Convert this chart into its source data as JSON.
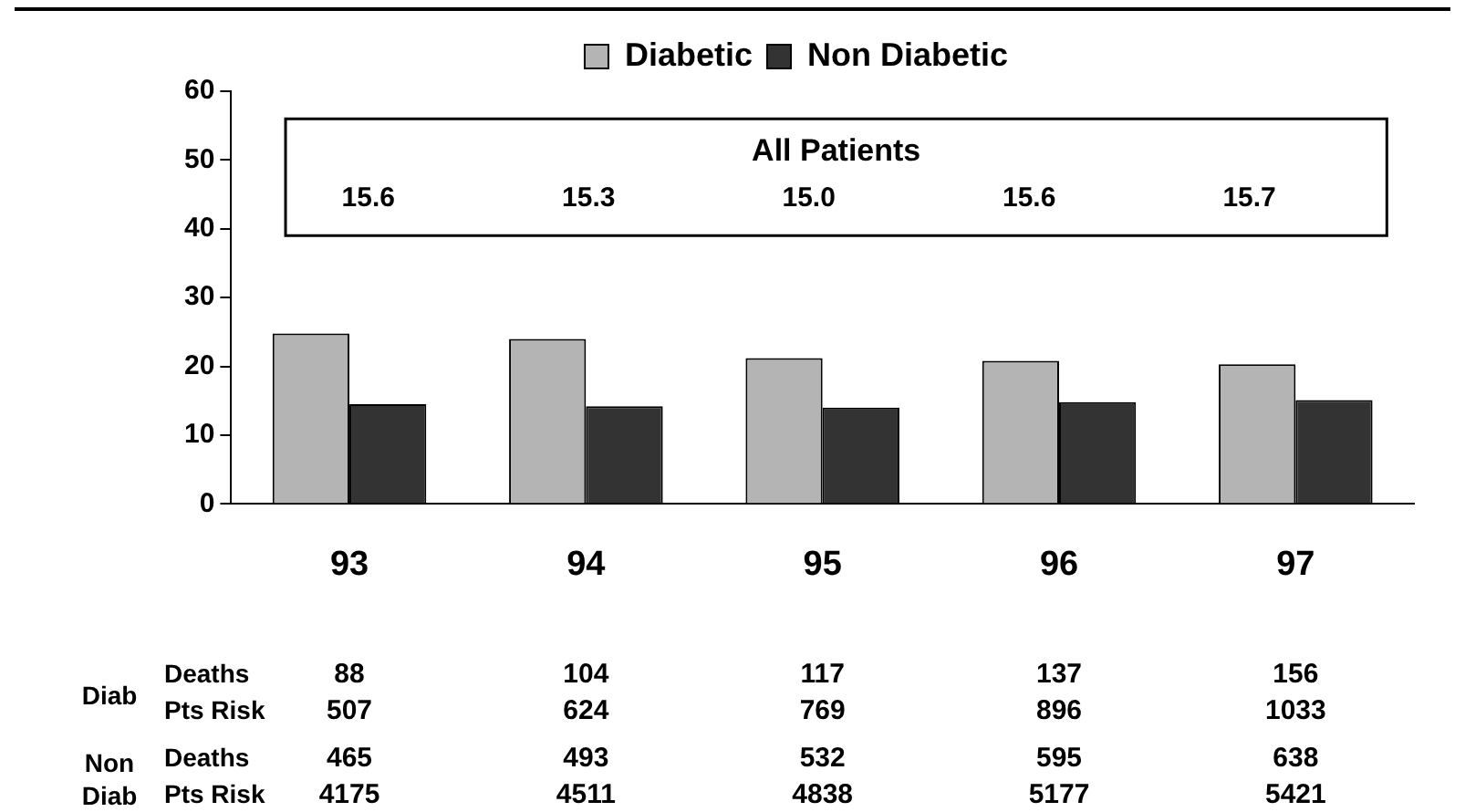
{
  "chart_data": {
    "type": "bar",
    "categories": [
      "93",
      "94",
      "95",
      "96",
      "97"
    ],
    "series": [
      {
        "name": "Diabetic",
        "color": "#b4b4b4",
        "values": [
          24.8,
          24.0,
          21.2,
          20.8,
          20.3
        ]
      },
      {
        "name": "Non Diabetic",
        "color": "#333333",
        "values": [
          14.5,
          14.2,
          14.0,
          14.8,
          15.1
        ]
      }
    ],
    "ylim": [
      0,
      60
    ],
    "yticks": [
      0,
      10,
      20,
      30,
      40,
      50,
      60
    ],
    "grid": false,
    "legend": "top",
    "annotations": [
      "All Patients",
      "15.6",
      "15.3",
      "15.0",
      "15.6",
      "15.7",
      "Diab",
      "Deaths",
      "88",
      "104",
      "117",
      "137",
      "156",
      "Pts Risk",
      "507",
      "624",
      "769",
      "896",
      "1033",
      "Non Diab",
      "Deaths",
      "465",
      "493",
      "532",
      "595",
      "638",
      "Pts Risk",
      "4175",
      "4511",
      "4838",
      "5177",
      "5421"
    ]
  }
}
